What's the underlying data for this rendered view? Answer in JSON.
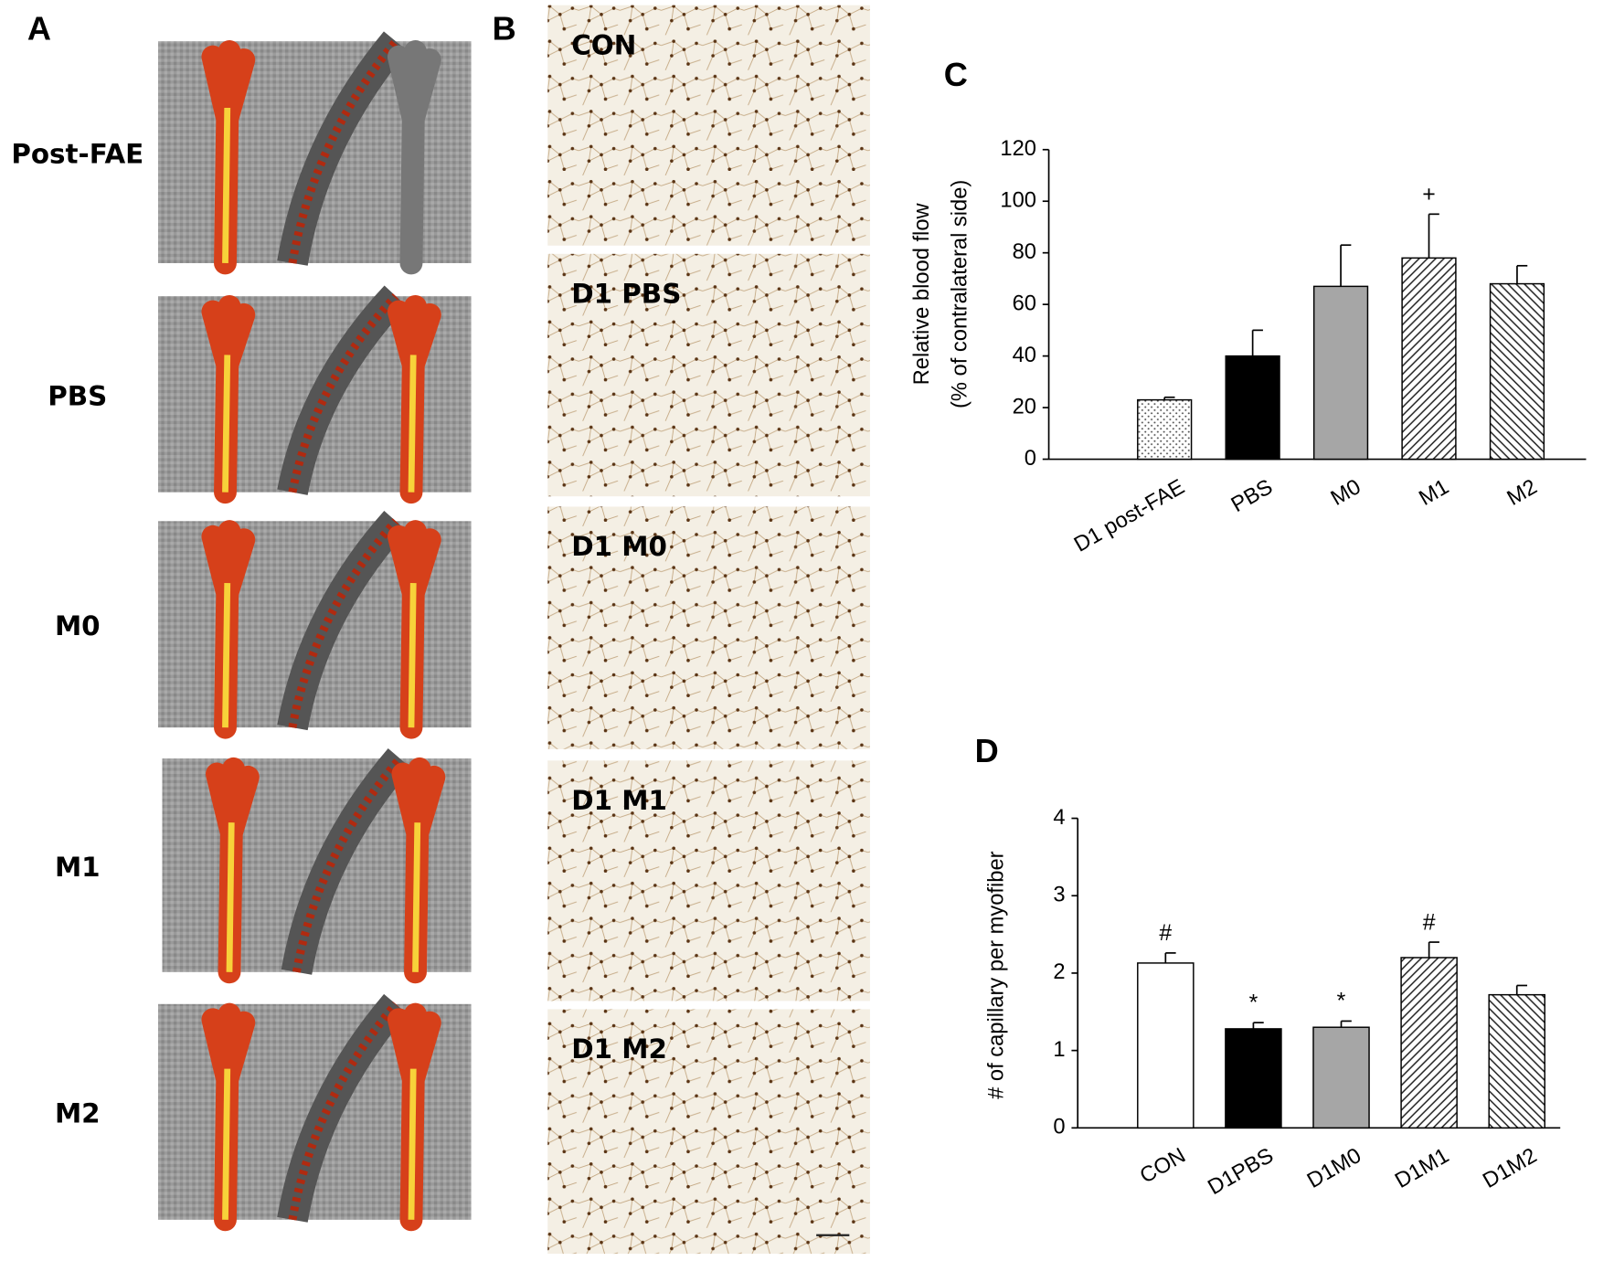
{
  "panel_a": {
    "label": "A",
    "rows": [
      "Post-FAE",
      "PBS",
      "M0",
      "M1",
      "M2"
    ]
  },
  "panel_b": {
    "label": "B",
    "rows": [
      "CON",
      "D1 PBS",
      "D1 M0",
      "D1 M1",
      "D1 M2"
    ]
  },
  "chart_data": [
    {
      "type": "bar",
      "label": "C",
      "ylabel": [
        "Relative blood flow",
        "(% of contralateral side)"
      ],
      "categories": [
        "D1 post-FAE",
        "PBS",
        "M0",
        "M1",
        "M2"
      ],
      "values": [
        23,
        40,
        67,
        78,
        68
      ],
      "errors": [
        1,
        10,
        16,
        17,
        7
      ],
      "markers": [
        null,
        null,
        null,
        "+",
        null
      ],
      "fills": [
        "dots",
        "black",
        "gray",
        "hatch-up",
        "hatch-down"
      ],
      "ylim": [
        0,
        120
      ],
      "yticks": [
        0,
        20,
        40,
        60,
        80,
        100,
        120
      ],
      "grid": false
    },
    {
      "type": "bar",
      "label": "D",
      "ylabel": [
        "# of capillary per myofiber"
      ],
      "categories": [
        "CON",
        "D1PBS",
        "D1M0",
        "D1M1",
        "D1M2"
      ],
      "values": [
        2.13,
        1.28,
        1.3,
        2.2,
        1.72
      ],
      "errors": [
        0.13,
        0.08,
        0.08,
        0.2,
        0.12
      ],
      "markers": [
        "#",
        "*",
        "*",
        "#",
        null
      ],
      "fills": [
        "white",
        "black",
        "gray",
        "hatch-up",
        "hatch-down"
      ],
      "ylim": [
        0,
        4
      ],
      "yticks": [
        0,
        1,
        2,
        3,
        4
      ],
      "grid": false
    }
  ]
}
